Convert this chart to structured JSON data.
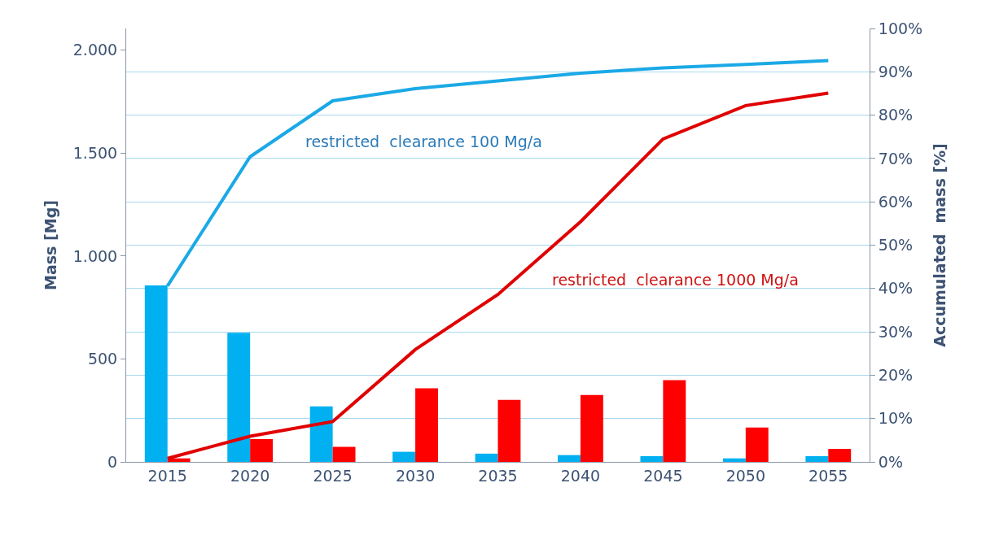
{
  "chart_data": {
    "type": "bar",
    "categories": [
      "2015",
      "2020",
      "2025",
      "2030",
      "2035",
      "2040",
      "2045",
      "2050",
      "2055"
    ],
    "series": [
      {
        "color": "#00b0f0",
        "values": [
          857,
          627,
          270,
          49,
          40,
          33,
          28,
          17,
          28
        ]
      },
      {
        "color": "#ff0000",
        "values": [
          17,
          111,
          73,
          358,
          301,
          325,
          397,
          167,
          63
        ]
      },
      {
        "type": "line",
        "axis": "y2",
        "name": "restricted  clearance 100 Mg/a",
        "color": "#1ba9e6",
        "values": [
          40.6,
          70.4,
          83.3,
          86.1,
          87.9,
          89.7,
          90.9,
          91.7,
          92.6
        ]
      },
      {
        "type": "line",
        "axis": "y2",
        "name": "restricted  clearance 1000 Mg/a",
        "color": "#e00000",
        "values": [
          0.8,
          5.9,
          9.3,
          25.9,
          38.6,
          55.4,
          74.5,
          82.2,
          85.1
        ]
      }
    ],
    "ylabel": "Mass [Mg]",
    "y2label": "Accumulated  mass [%]",
    "ylim": [
      0,
      2106
    ],
    "yticks": [
      {
        "value": 0,
        "label": "0"
      },
      {
        "value": 500,
        "label": "500"
      },
      {
        "value": 1000,
        "label": "1.000"
      },
      {
        "value": 1500,
        "label": "1.500"
      },
      {
        "value": 2000,
        "label": "2.000"
      }
    ],
    "y2lim": [
      0,
      100
    ],
    "y2ticks": [
      {
        "value": 0,
        "label": "0%"
      },
      {
        "value": 10,
        "label": "10%"
      },
      {
        "value": 20,
        "label": "20%"
      },
      {
        "value": 30,
        "label": "30%"
      },
      {
        "value": 40,
        "label": "40%"
      },
      {
        "value": 50,
        "label": "50%"
      },
      {
        "value": 60,
        "label": "60%"
      },
      {
        "value": 70,
        "label": "70%"
      },
      {
        "value": 80,
        "label": "80%"
      },
      {
        "value": 90,
        "label": "90%"
      },
      {
        "value": 100,
        "label": "100%"
      }
    ],
    "grid": "y"
  }
}
